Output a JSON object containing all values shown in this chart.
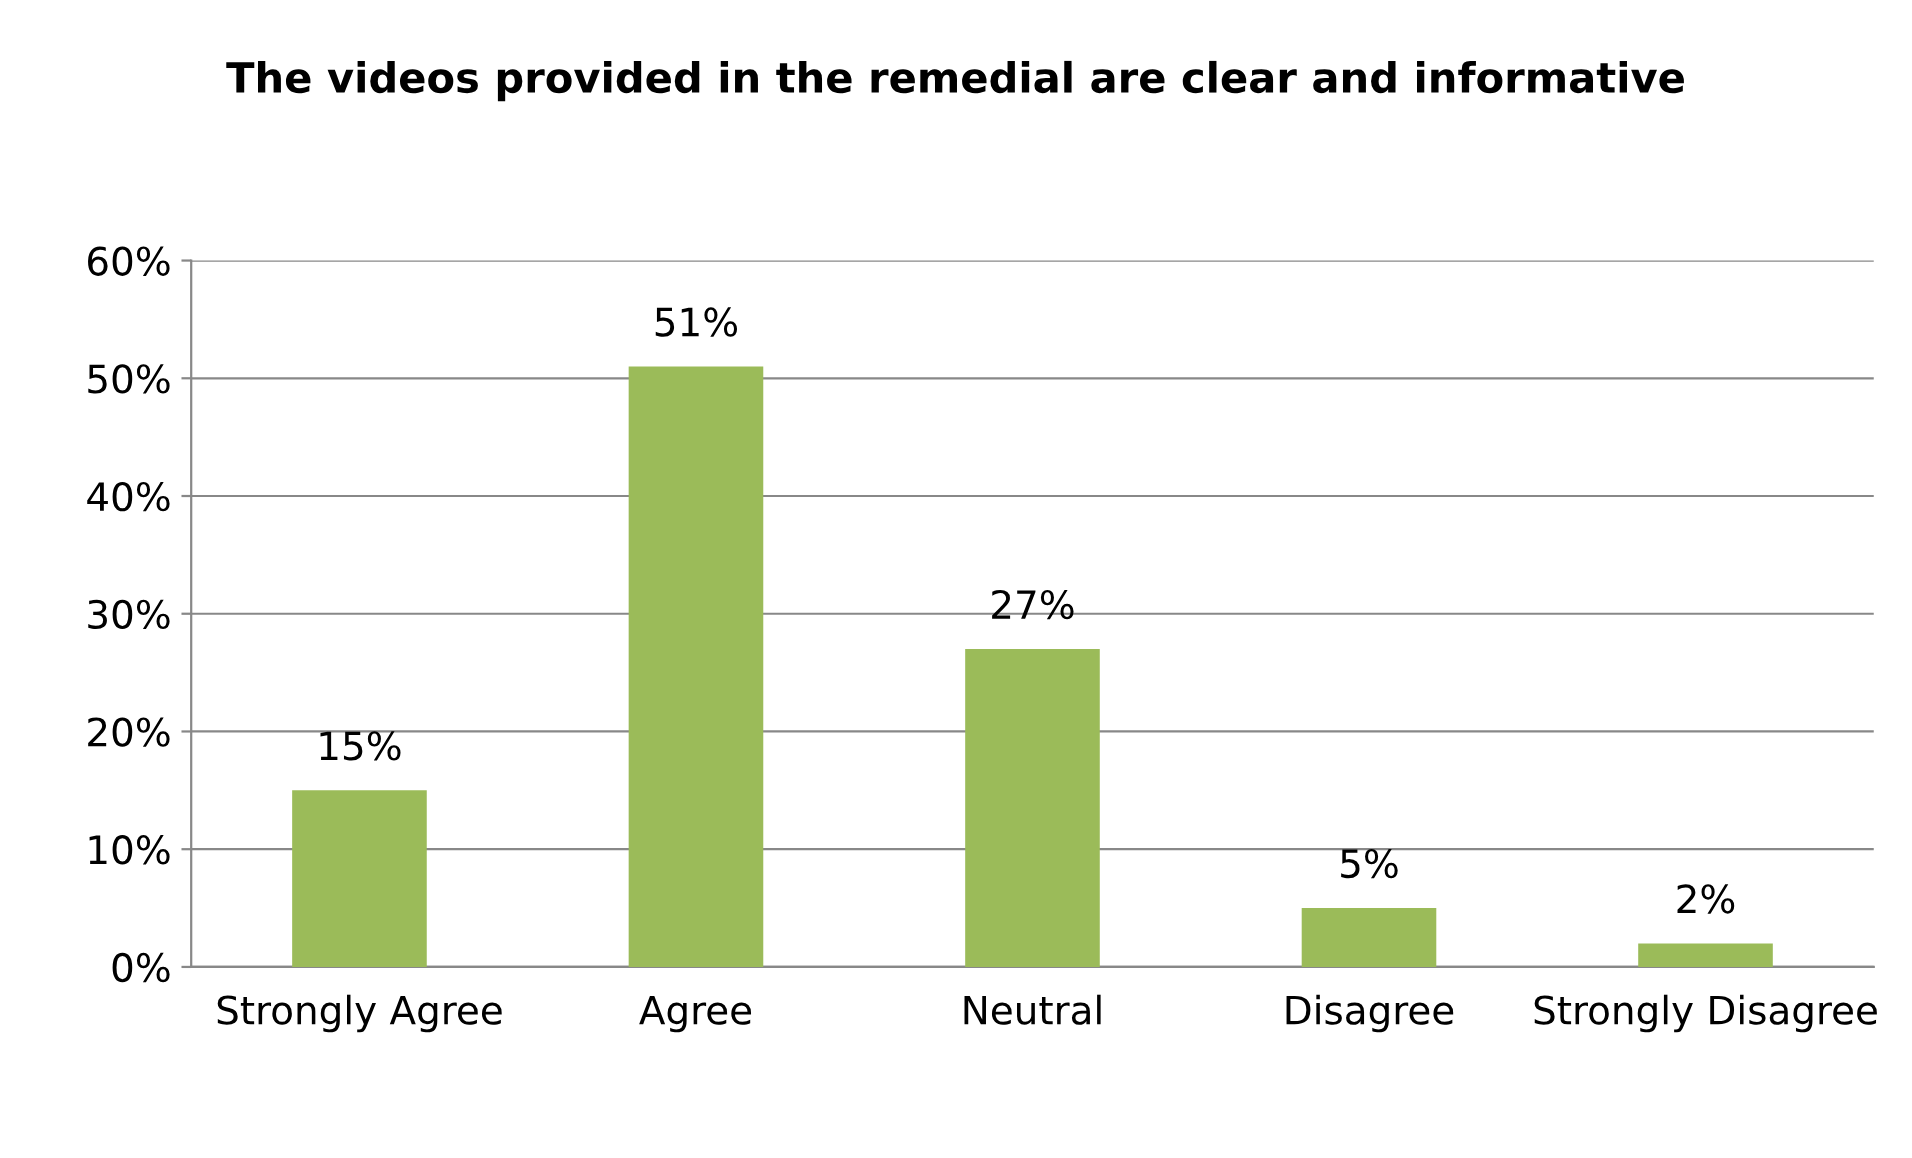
{
  "chart_data": {
    "type": "bar",
    "title": "The videos provided in the remedial are clear and informative",
    "categories": [
      "Strongly Agree",
      "Agree",
      "Neutral",
      "Disagree",
      "Strongly Disagree"
    ],
    "values": [
      15,
      51,
      27,
      5,
      2
    ],
    "value_labels": [
      "15%",
      "51%",
      "27%",
      "5%",
      "2%"
    ],
    "color": "#9bbb59",
    "ylim": [
      0,
      60
    ],
    "yticks": [
      {
        "value": 0,
        "label": "0%"
      },
      {
        "value": 10,
        "label": "10%"
      },
      {
        "value": 20,
        "label": "20%"
      },
      {
        "value": 30,
        "label": "30%"
      },
      {
        "value": 40,
        "label": "40%"
      },
      {
        "value": 50,
        "label": "50%"
      },
      {
        "value": 60,
        "label": "60%"
      }
    ],
    "grid": "y",
    "legend": false
  }
}
